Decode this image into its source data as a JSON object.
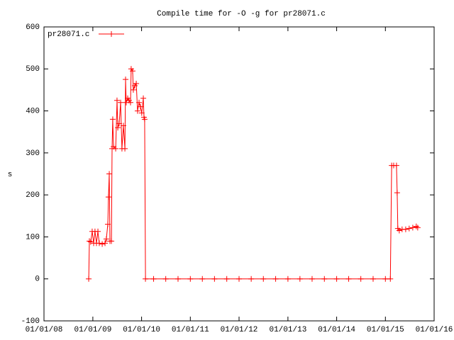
{
  "chart_data": {
    "type": "line",
    "title": "Compile time for -O -g for pr28071.c",
    "y_label": "s",
    "xlim": [
      "2008-01-01",
      "2016-01-01"
    ],
    "xticks": [
      {
        "value": "2008-01-01",
        "label": "01/01/08"
      },
      {
        "value": "2009-01-01",
        "label": "01/01/09"
      },
      {
        "value": "2010-01-01",
        "label": "01/01/10"
      },
      {
        "value": "2011-01-01",
        "label": "01/01/11"
      },
      {
        "value": "2012-01-01",
        "label": "01/01/12"
      },
      {
        "value": "2013-01-01",
        "label": "01/01/13"
      },
      {
        "value": "2014-01-01",
        "label": "01/01/14"
      },
      {
        "value": "2015-01-01",
        "label": "01/01/15"
      },
      {
        "value": "2016-01-01",
        "label": "01/01/16"
      }
    ],
    "ylim": [
      -100,
      600
    ],
    "yticks": [
      -100,
      0,
      100,
      200,
      300,
      400,
      500,
      600
    ],
    "legend": "top-left",
    "x": [
      "2008-12-01",
      "2008-12-06",
      "2008-12-16",
      "2008-12-27",
      "2009-01-07",
      "2009-01-17",
      "2009-01-28",
      "2009-02-08",
      "2009-02-18",
      "2009-03-12",
      "2009-04-02",
      "2009-04-12",
      "2009-04-23",
      "2009-04-28",
      "2009-05-04",
      "2009-05-09",
      "2009-05-20",
      "2009-05-25",
      "2009-05-30",
      "2009-06-05",
      "2009-06-21",
      "2009-07-01",
      "2009-07-07",
      "2009-07-17",
      "2009-07-28",
      "2009-08-07",
      "2009-08-18",
      "2009-08-29",
      "2009-09-03",
      "2009-09-08",
      "2009-09-19",
      "2009-09-29",
      "2009-10-10",
      "2009-10-15",
      "2009-10-26",
      "2009-10-31",
      "2009-11-11",
      "2009-11-22",
      "2009-12-02",
      "2009-12-13",
      "2009-12-23",
      "2010-01-02",
      "2010-01-14",
      "2010-01-19",
      "2010-01-24",
      "2010-01-30",
      "2010-04-01",
      "2010-07-01",
      "2010-10-01",
      "2011-01-01",
      "2011-04-01",
      "2011-07-01",
      "2011-10-01",
      "2012-01-01",
      "2012-04-01",
      "2012-07-01",
      "2012-10-01",
      "2013-01-01",
      "2013-04-01",
      "2013-07-01",
      "2013-10-01",
      "2014-01-01",
      "2014-04-01",
      "2014-07-01",
      "2014-10-01",
      "2015-01-01",
      "2015-02-07",
      "2015-02-17",
      "2015-03-04",
      "2015-03-25",
      "2015-03-30",
      "2015-04-04",
      "2015-04-15",
      "2015-05-06",
      "2015-06-02",
      "2015-06-28",
      "2015-07-25",
      "2015-08-20",
      "2015-08-31"
    ],
    "series": [
      {
        "name": "pr28071.c",
        "color": "#ff0000",
        "values": [
          0,
          90,
          88,
          113,
          85,
          113,
          85,
          113,
          85,
          83,
          85,
          95,
          130,
          195,
          250,
          90,
          90,
          310,
          380,
          315,
          310,
          425,
          360,
          370,
          420,
          310,
          365,
          310,
          475,
          420,
          430,
          425,
          420,
          500,
          495,
          450,
          460,
          465,
          400,
          420,
          410,
          395,
          430,
          385,
          380,
          0,
          0,
          0,
          0,
          0,
          0,
          0,
          0,
          0,
          0,
          0,
          0,
          0,
          0,
          0,
          0,
          0,
          0,
          0,
          0,
          0,
          0,
          270,
          270,
          270,
          205,
          120,
          115,
          118,
          118,
          120,
          122,
          125,
          122
        ]
      }
    ]
  }
}
